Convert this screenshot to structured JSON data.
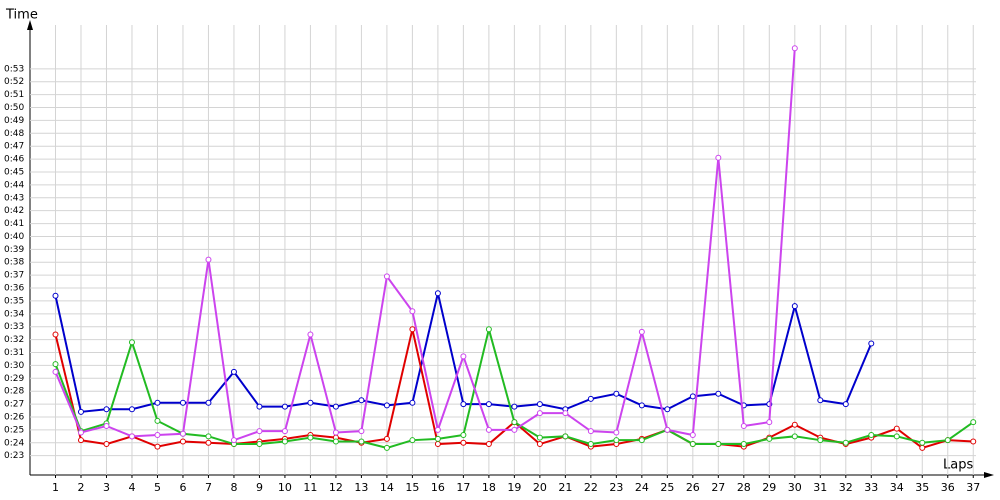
{
  "chart_data": {
    "type": "line",
    "y_label": "Time",
    "x_label": "Laps",
    "x": [
      1,
      2,
      3,
      4,
      5,
      6,
      7,
      8,
      9,
      10,
      11,
      12,
      13,
      14,
      15,
      16,
      17,
      18,
      19,
      20,
      21,
      22,
      23,
      24,
      25,
      26,
      27,
      28,
      29,
      30,
      31,
      32,
      33,
      34,
      35,
      36,
      37
    ],
    "xlim": [
      0,
      37.5
    ],
    "xticks": [
      1,
      2,
      3,
      4,
      5,
      6,
      7,
      8,
      9,
      10,
      11,
      12,
      13,
      14,
      15,
      16,
      17,
      18,
      19,
      20,
      21,
      22,
      23,
      24,
      25,
      26,
      27,
      28,
      29,
      30,
      31,
      32,
      33,
      34,
      35,
      36,
      37
    ],
    "ylim": [
      21.5,
      56.4
    ],
    "yticks": [
      {
        "value": 23,
        "label": "0:23"
      },
      {
        "value": 24,
        "label": "0:24"
      },
      {
        "value": 25,
        "label": "0:25"
      },
      {
        "value": 26,
        "label": "0:26"
      },
      {
        "value": 27,
        "label": "0:27"
      },
      {
        "value": 28,
        "label": "0:28"
      },
      {
        "value": 29,
        "label": "0:29"
      },
      {
        "value": 30,
        "label": "0:30"
      },
      {
        "value": 31,
        "label": "0:31"
      },
      {
        "value": 32,
        "label": "0:32"
      },
      {
        "value": 33,
        "label": "0:33"
      },
      {
        "value": 34,
        "label": "0:34"
      },
      {
        "value": 35,
        "label": "0:35"
      },
      {
        "value": 36,
        "label": "0:36"
      },
      {
        "value": 37,
        "label": "0:37"
      },
      {
        "value": 38,
        "label": "0:38"
      },
      {
        "value": 39,
        "label": "0:39"
      },
      {
        "value": 40,
        "label": "0:40"
      },
      {
        "value": 41,
        "label": "0:41"
      },
      {
        "value": 42,
        "label": "0:42"
      },
      {
        "value": 43,
        "label": "0:43"
      },
      {
        "value": 44,
        "label": "0:44"
      },
      {
        "value": 45,
        "label": "0:45"
      },
      {
        "value": 46,
        "label": "0:46"
      },
      {
        "value": 47,
        "label": "0:47"
      },
      {
        "value": 48,
        "label": "0:48"
      },
      {
        "value": 49,
        "label": "0:49"
      },
      {
        "value": 50,
        "label": "0:50"
      },
      {
        "value": 51,
        "label": "0:51"
      },
      {
        "value": 52,
        "label": "0:52"
      },
      {
        "value": 53,
        "label": "0:53"
      }
    ],
    "grid": true,
    "series": [
      {
        "color": "#0000cc",
        "values": [
          35.4,
          26.4,
          26.6,
          26.6,
          27.1,
          27.1,
          27.1,
          29.5,
          26.8,
          26.8,
          27.1,
          26.8,
          27.3,
          26.9,
          27.1,
          35.6,
          27.0,
          27.0,
          26.8,
          27.0,
          26.6,
          27.4,
          27.8,
          26.9,
          26.6,
          27.6,
          27.8,
          26.9,
          27.0,
          34.6,
          27.3,
          27.0,
          31.7,
          null,
          null,
          null,
          null
        ]
      },
      {
        "color": "#e00000",
        "values": [
          32.4,
          24.2,
          23.9,
          24.5,
          23.7,
          24.1,
          24.0,
          23.9,
          24.1,
          24.3,
          24.6,
          24.4,
          24.0,
          24.3,
          32.8,
          23.9,
          24.0,
          23.9,
          25.6,
          23.9,
          24.5,
          23.7,
          23.9,
          24.3,
          25.0,
          23.9,
          23.9,
          23.7,
          24.4,
          25.4,
          24.4,
          23.9,
          24.4,
          25.1,
          23.6,
          24.2,
          24.1
        ]
      },
      {
        "color": "#22bb22",
        "values": [
          30.1,
          24.9,
          25.5,
          31.8,
          25.7,
          24.7,
          24.5,
          23.9,
          23.9,
          24.1,
          24.4,
          24.1,
          24.1,
          23.6,
          24.2,
          24.3,
          24.6,
          32.8,
          25.6,
          24.4,
          24.5,
          23.9,
          24.2,
          24.2,
          25.0,
          23.9,
          23.9,
          23.9,
          24.3,
          24.5,
          24.2,
          24.0,
          24.6,
          24.5,
          24.0,
          24.2,
          25.6
        ]
      },
      {
        "color": "#cc44ee",
        "values": [
          29.5,
          24.8,
          25.3,
          24.5,
          24.6,
          24.7,
          38.2,
          24.2,
          24.9,
          24.9,
          32.4,
          24.8,
          24.9,
          36.9,
          34.2,
          25.0,
          30.7,
          25.0,
          25.0,
          26.3,
          26.3,
          24.9,
          24.8,
          32.6,
          25.0,
          24.6,
          46.1,
          25.3,
          25.6,
          54.6,
          null,
          null,
          null,
          null,
          null,
          null,
          null
        ]
      }
    ]
  }
}
